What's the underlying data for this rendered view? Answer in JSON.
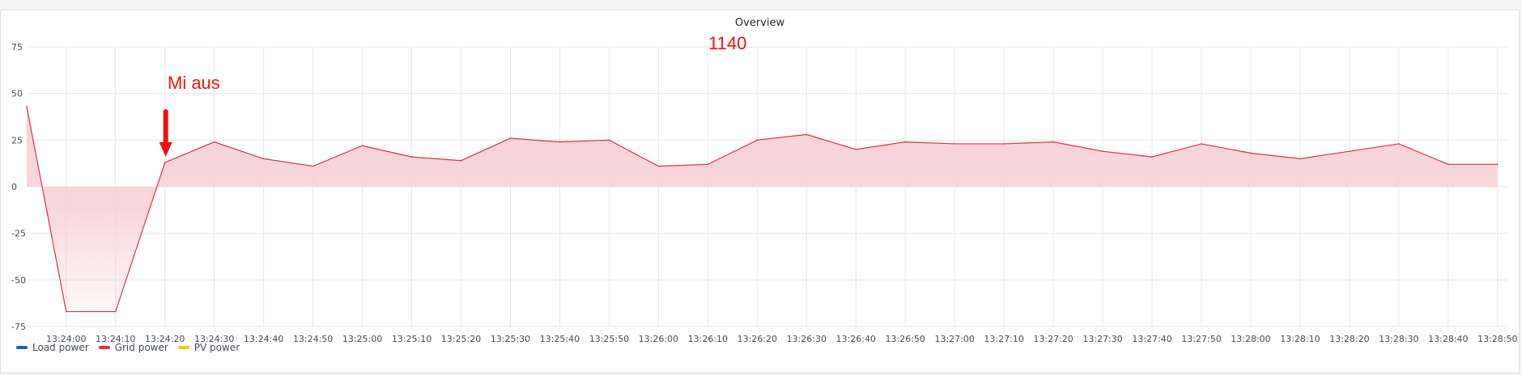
{
  "panel": {
    "title": "Overview"
  },
  "chart_data": {
    "type": "area",
    "title": "Overview",
    "xlabel": "",
    "ylabel": "",
    "ylim": [
      -75,
      75
    ],
    "y_ticks": [
      75,
      50,
      25,
      0,
      -25,
      -50,
      -75
    ],
    "x_tick_labels": [
      "13:24:00",
      "13:24:10",
      "13:24:20",
      "13:24:30",
      "13:24:40",
      "13:24:50",
      "13:25:00",
      "13:25:10",
      "13:25:20",
      "13:25:30",
      "13:25:40",
      "13:25:50",
      "13:26:00",
      "13:26:10",
      "13:26:20",
      "13:26:30",
      "13:26:40",
      "13:26:50",
      "13:27:00",
      "13:27:10",
      "13:27:20",
      "13:27:30",
      "13:27:40",
      "13:27:50",
      "13:28:00",
      "13:28:10",
      "13:28:20",
      "13:28:30",
      "13:28:40",
      "13:28:50"
    ],
    "x_range": [
      "13:23:52",
      "13:28:52"
    ],
    "grid": true,
    "legend_position": "bottom-left",
    "legend": [
      {
        "name": "Load power",
        "color": "#1f60c4"
      },
      {
        "name": "Grid power",
        "color": "#e0304a"
      },
      {
        "name": "PV power",
        "color": "#f2cc0c"
      }
    ],
    "series": [
      {
        "name": "Grid power",
        "color": "#e0304a",
        "fill_color": "#f7d0d6",
        "x": [
          "13:23:52",
          "13:24:00",
          "13:24:10",
          "13:24:20",
          "13:24:30",
          "13:24:40",
          "13:24:50",
          "13:25:00",
          "13:25:10",
          "13:25:20",
          "13:25:30",
          "13:25:40",
          "13:25:50",
          "13:26:00",
          "13:26:10",
          "13:26:20",
          "13:26:30",
          "13:26:40",
          "13:26:50",
          "13:27:00",
          "13:27:10",
          "13:27:20",
          "13:27:30",
          "13:27:40",
          "13:27:50",
          "13:28:00",
          "13:28:10",
          "13:28:20",
          "13:28:30",
          "13:28:40",
          "13:28:50"
        ],
        "values": [
          43,
          -67,
          -67,
          13,
          24,
          15,
          11,
          22,
          16,
          14,
          26,
          24,
          25,
          11,
          12,
          25,
          28,
          20,
          24,
          23,
          23,
          24,
          19,
          16,
          23,
          18,
          15,
          19,
          23,
          12,
          12
        ]
      }
    ],
    "annotations": [
      {
        "text": "1140",
        "color": "#ee1111"
      },
      {
        "text": "Mi aus",
        "color": "#ee1111",
        "points_to_x": "13:24:20"
      }
    ]
  }
}
